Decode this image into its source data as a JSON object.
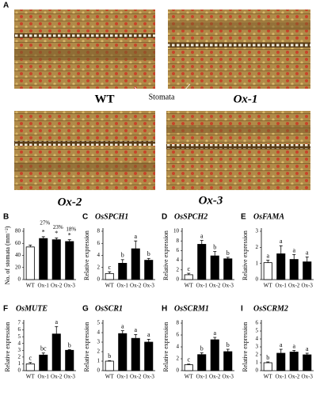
{
  "panel_a": {
    "label": "A",
    "annotation": "Stomata",
    "images": [
      {
        "label": "WT"
      },
      {
        "label": "Ox-1"
      },
      {
        "label": "Ox-2"
      },
      {
        "label": "Ox-3"
      }
    ]
  },
  "chart_data": [
    {
      "type": "bar",
      "label": "B",
      "ylabel": "No. of stomata (mm⁻²)",
      "categories": [
        "WT",
        "Ox-1",
        "Ox-2",
        "Ox-3"
      ],
      "values": [
        54,
        68,
        66,
        63
      ],
      "errors": [
        3,
        3,
        3,
        3
      ],
      "letters": [
        null,
        "*",
        "*",
        "*"
      ],
      "percent_labels": [
        null,
        "27%",
        "23%",
        "18%"
      ],
      "colors": [
        "#ffffff",
        "#000000",
        "#000000",
        "#000000"
      ],
      "ylim": [
        0,
        80
      ],
      "yticks": [
        0,
        20,
        40,
        60,
        80
      ]
    },
    {
      "type": "bar",
      "label": "C",
      "title": "OsSPCH1",
      "ylabel": "Relative expression",
      "categories": [
        "WT",
        "Ox-1",
        "Ox-2",
        "Ox-3"
      ],
      "values": [
        1,
        2.7,
        5.1,
        3.2
      ],
      "errors": [
        0.3,
        0.6,
        1.3,
        0.3
      ],
      "letters": [
        "c",
        "b",
        "a",
        "b"
      ],
      "colors": [
        "#ffffff",
        "#000000",
        "#000000",
        "#000000"
      ],
      "ylim": [
        0,
        8
      ],
      "yticks": [
        0,
        2,
        4,
        6,
        8
      ]
    },
    {
      "type": "bar",
      "label": "D",
      "title": "OsSPCH2",
      "ylabel": "Relative expression",
      "categories": [
        "WT",
        "Ox-1",
        "Ox-2",
        "Ox-3"
      ],
      "values": [
        1,
        7.3,
        4.9,
        4.3
      ],
      "errors": [
        0.3,
        0.8,
        0.9,
        0.3
      ],
      "letters": [
        "c",
        "a",
        "b",
        "b"
      ],
      "colors": [
        "#ffffff",
        "#000000",
        "#000000",
        "#000000"
      ],
      "ylim": [
        0,
        10
      ],
      "yticks": [
        0,
        2,
        4,
        6,
        8,
        10
      ]
    },
    {
      "type": "bar",
      "label": "E",
      "title": "OsFAMA",
      "ylabel": "Relative expression",
      "categories": [
        "WT",
        "Ox-1",
        "Ox-2",
        "Ox-3"
      ],
      "values": [
        1.05,
        1.6,
        1.25,
        1.1
      ],
      "errors": [
        0.15,
        0.5,
        0.3,
        0.3
      ],
      "letters": [
        "a",
        "a",
        "a",
        "a"
      ],
      "colors": [
        "#ffffff",
        "#000000",
        "#000000",
        "#000000"
      ],
      "ylim": [
        0,
        3
      ],
      "yticks": [
        0,
        1,
        2,
        3
      ]
    },
    {
      "type": "bar",
      "label": "F",
      "title": "OsMUTE",
      "ylabel": "Relative expression",
      "categories": [
        "WT",
        "Ox-1",
        "Ox-2",
        "Ox-3"
      ],
      "values": [
        1,
        2.3,
        5.4,
        3.0
      ],
      "errors": [
        0.2,
        0.3,
        1.1,
        0.1
      ],
      "letters": [
        "c",
        "bc",
        "a",
        "b"
      ],
      "colors": [
        "#ffffff",
        "#000000",
        "#000000",
        "#000000"
      ],
      "ylim": [
        0,
        7
      ],
      "yticks": [
        0,
        1,
        2,
        3,
        4,
        5,
        6,
        7
      ]
    },
    {
      "type": "bar",
      "label": "G",
      "title": "OsSCR1",
      "ylabel": "Relative expression",
      "categories": [
        "WT",
        "Ox-1",
        "Ox-2",
        "Ox-3"
      ],
      "values": [
        1,
        3.9,
        3.4,
        3.0
      ],
      "errors": [
        0.05,
        0.3,
        0.4,
        0.3
      ],
      "letters": [
        "b",
        "a",
        "a",
        "a"
      ],
      "colors": [
        "#ffffff",
        "#000000",
        "#000000",
        "#000000"
      ],
      "ylim": [
        0,
        5
      ],
      "yticks": [
        0,
        1,
        2,
        3,
        4,
        5
      ]
    },
    {
      "type": "bar",
      "label": "H",
      "title": "OsSCRM1",
      "ylabel": "Relative expression",
      "categories": [
        "WT",
        "Ox-1",
        "Ox-2",
        "Ox-3"
      ],
      "values": [
        1,
        2.7,
        5.2,
        3.2
      ],
      "errors": [
        0.1,
        0.3,
        0.4,
        0.4
      ],
      "letters": [
        "c",
        "b",
        "a",
        "b"
      ],
      "colors": [
        "#ffffff",
        "#000000",
        "#000000",
        "#000000"
      ],
      "ylim": [
        0,
        8
      ],
      "yticks": [
        0,
        2,
        4,
        6,
        8
      ]
    },
    {
      "type": "bar",
      "label": "I",
      "title": "OsSCRM2",
      "ylabel": "Relative expression",
      "categories": [
        "WT",
        "Ox-1",
        "Ox-2",
        "Ox-3"
      ],
      "values": [
        1,
        2.2,
        2.35,
        2.0
      ],
      "errors": [
        0.1,
        0.5,
        0.2,
        0.2
      ],
      "letters": [
        "b",
        "a",
        "a",
        "a"
      ],
      "colors": [
        "#ffffff",
        "#000000",
        "#000000",
        "#000000"
      ],
      "ylim": [
        0,
        6
      ],
      "yticks": [
        0,
        1,
        2,
        3,
        4,
        5,
        6
      ]
    }
  ]
}
